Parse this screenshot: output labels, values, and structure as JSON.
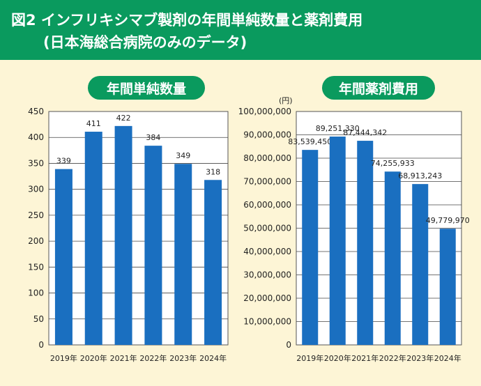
{
  "header": {
    "title_line1": "図2 インフリキシマブ製剤の年間単純数量と薬剤費用",
    "title_line2": "(日本海総合病院のみのデータ)"
  },
  "colors": {
    "header_bg": "#0a9a5e",
    "background": "#fdf5d6",
    "bar": "#1a6fc0",
    "plot_bg": "#ffffff",
    "text": "#222222"
  },
  "chart_data": [
    {
      "type": "bar",
      "title": "年間単純数量",
      "categories": [
        "2019年",
        "2020年",
        "2021年",
        "2022年",
        "2023年",
        "2024年"
      ],
      "values": [
        339,
        411,
        422,
        384,
        349,
        318
      ],
      "value_labels": [
        "339",
        "411",
        "422",
        "384",
        "349",
        "318"
      ],
      "ylim": [
        0,
        450
      ],
      "yticks": [
        0,
        50,
        100,
        150,
        200,
        250,
        300,
        350,
        400,
        450
      ],
      "ytick_labels": [
        "0",
        "50",
        "100",
        "150",
        "200",
        "250",
        "300",
        "350",
        "400",
        "450"
      ],
      "ylabel": "",
      "xlabel": "",
      "grid": true
    },
    {
      "type": "bar",
      "title": "年間薬剤費用",
      "unit": "(円)",
      "categories": [
        "2019年",
        "2020年",
        "2021年",
        "2022年",
        "2023年",
        "2024年"
      ],
      "values": [
        83539450,
        89251330,
        87444342,
        74255933,
        68913243,
        49779970
      ],
      "value_labels": [
        "83,539,450",
        "89,251,330",
        "87,444,342",
        "74,255,933",
        "68,913,243",
        "49,779,970"
      ],
      "ylim": [
        0,
        100000000
      ],
      "yticks": [
        0,
        10000000,
        20000000,
        30000000,
        40000000,
        50000000,
        60000000,
        70000000,
        80000000,
        90000000,
        100000000
      ],
      "ytick_labels": [
        "0",
        "10,000,000",
        "20,000,000",
        "30,000,000",
        "40,000,000",
        "50,000,000",
        "60,000,000",
        "70,000,000",
        "80,000,000",
        "90,000,000",
        "100,000,000"
      ],
      "ylabel": "",
      "xlabel": "",
      "grid": true
    }
  ]
}
